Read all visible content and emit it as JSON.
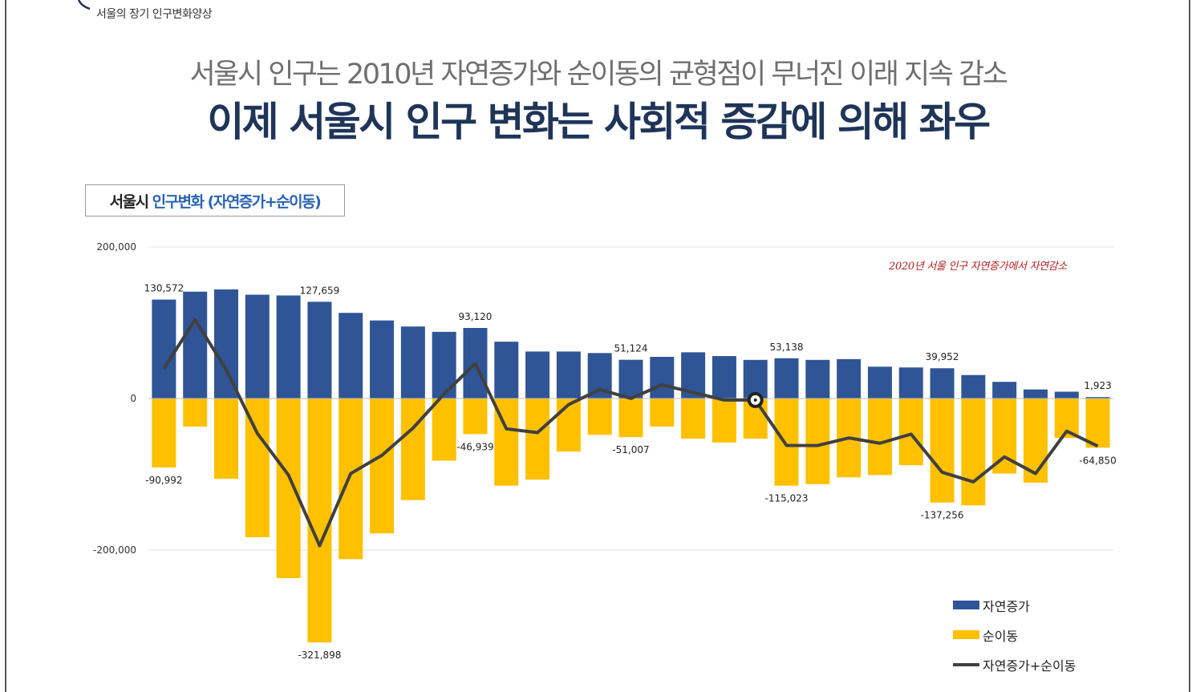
{
  "header": {
    "section_label": "서울의 장기 인구변화양상",
    "subtitle": "서울시 인구는 2010년 자연증가와 순이동의 균형점이 무너진 이래 지속 감소",
    "title": "이제 서울시 인구 변화는 사회적 증감에 의해 좌우"
  },
  "chart_box": {
    "city": "서울시",
    "desc": "인구변화 (자연증가+순이동)"
  },
  "annotation": "2020년 서울 인구 자연증가에서 자연감소",
  "legend": {
    "natural": "자연증가",
    "migration": "순이동",
    "total": "자연증가+순이동"
  },
  "colors": {
    "natural": "#2f5597",
    "migration": "#ffc000",
    "total": "#404040",
    "title": "#1f3558",
    "accent": "#2a63b4",
    "annotation": "#b02020"
  },
  "chart_data": {
    "type": "bar",
    "title": "서울시 인구변화 (자연증가+순이동)",
    "ylim": [
      -321898,
      200000
    ],
    "yticks": [
      200000,
      0,
      -200000
    ],
    "ytick_labels": [
      "200,000",
      "0",
      "-200,000"
    ],
    "grid": true,
    "legend_position": "bottom-right",
    "series": [
      {
        "name": "자연증가",
        "values": [
          130572,
          141000,
          144000,
          137000,
          136000,
          127659,
          113000,
          103000,
          95000,
          88000,
          93120,
          75000,
          62000,
          62000,
          60000,
          51124,
          55000,
          61000,
          56000,
          51000,
          53138,
          51000,
          52000,
          42000,
          41000,
          39952,
          31000,
          22000,
          12000,
          9000,
          1923
        ]
      },
      {
        "name": "순이동",
        "values": [
          -90992,
          -37000,
          -106000,
          -183000,
          -237000,
          -321898,
          -212000,
          -178000,
          -134000,
          -82000,
          -46939,
          -115000,
          -107000,
          -70000,
          -48000,
          -51007,
          -37000,
          -53000,
          -58000,
          -53000,
          -115023,
          -113000,
          -104000,
          -101000,
          -88000,
          -137256,
          -141000,
          -99000,
          -111000,
          -52000,
          -64850
        ]
      },
      {
        "name": "자연증가+순이동",
        "values": [
          39580,
          104000,
          38000,
          -46000,
          -101000,
          -194239,
          -99000,
          -75000,
          -39000,
          6000,
          46181,
          -40000,
          -45000,
          -8000,
          12000,
          117,
          18000,
          8000,
          -2000,
          -2000,
          -61885,
          -62000,
          -52000,
          -59000,
          -47000,
          -97304,
          -110000,
          -77000,
          -99000,
          -43000,
          -62927
        ]
      }
    ],
    "data_labels": {
      "natural": [
        {
          "index": 0,
          "text": "130,572"
        },
        {
          "index": 5,
          "text": "127,659"
        },
        {
          "index": 10,
          "text": "93,120"
        },
        {
          "index": 15,
          "text": "51,124"
        },
        {
          "index": 20,
          "text": "53,138"
        },
        {
          "index": 25,
          "text": "39,952"
        },
        {
          "index": 30,
          "text": "1,923"
        }
      ],
      "migration": [
        {
          "index": 0,
          "text": "-90,992"
        },
        {
          "index": 5,
          "text": "-321,898"
        },
        {
          "index": 10,
          "text": "-46,939"
        },
        {
          "index": 15,
          "text": "-51,007"
        },
        {
          "index": 20,
          "text": "-115,023"
        },
        {
          "index": 25,
          "text": "-137,256"
        },
        {
          "index": 30,
          "text": "-64,850"
        }
      ]
    }
  }
}
